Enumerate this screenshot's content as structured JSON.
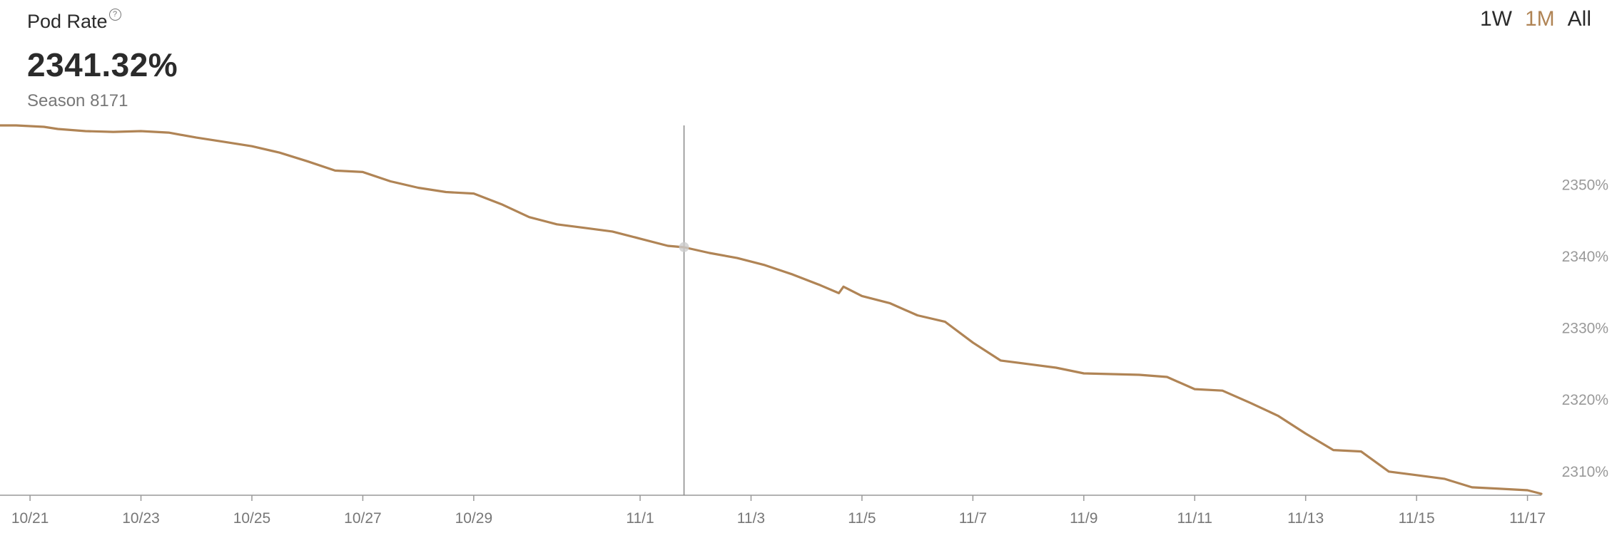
{
  "header": {
    "title": "Pod Rate",
    "help_icon": "question-circle-icon",
    "value": "2341.32%",
    "subtitle": "Season 8171"
  },
  "range_tabs": [
    {
      "label": "1W",
      "active": false
    },
    {
      "label": "1M",
      "active": true
    },
    {
      "label": "All",
      "active": false
    }
  ],
  "colors": {
    "line": "#b08455",
    "crosshair": "#888888",
    "axis": "#999999"
  },
  "chart_data": {
    "type": "line",
    "title": "",
    "xlabel": "",
    "ylabel": "",
    "x_ticks": [
      "10/21",
      "10/23",
      "10/25",
      "10/27",
      "10/29",
      "11/1",
      "11/3",
      "11/5",
      "11/7",
      "11/9",
      "11/11",
      "11/13",
      "11/15",
      "11/17"
    ],
    "y_ticks": [
      "2310%",
      "2320%",
      "2330%",
      "2340%",
      "2350%"
    ],
    "ylim": [
      2306.7,
      2358.3
    ],
    "xlim": [
      "10/20 11:00",
      "11/17 06:00"
    ],
    "grid": false,
    "hover": {
      "x": "11/1 19:00",
      "y": 2341.32
    },
    "series": [
      {
        "x": [
          "10/20 11:00",
          "10/20 18:00",
          "10/21 00:00",
          "10/21 06:00",
          "10/21 12:00",
          "10/22 00:00",
          "10/22 12:00",
          "10/23 00:00",
          "10/23 12:00",
          "10/24 00:00",
          "10/24 12:00",
          "10/25 00:00",
          "10/25 12:00",
          "10/26 00:00",
          "10/26 12:00",
          "10/27 00:00",
          "10/27 12:00",
          "10/28 00:00",
          "10/28 12:00",
          "10/29 00:00",
          "10/29 12:00",
          "10/30 00:00",
          "10/30 12:00",
          "10/31 00:00",
          "10/31 12:00",
          "11/1 00:00",
          "11/1 12:00",
          "11/1 19:00",
          "11/2 06:00",
          "11/2 18:00",
          "11/3 06:00",
          "11/3 18:00",
          "11/4 06:00",
          "11/4 14:00",
          "11/4 16:00",
          "11/5 00:00",
          "11/5 12:00",
          "11/6 00:00",
          "11/6 12:00",
          "11/7 00:00",
          "11/7 12:00",
          "11/8 00:00",
          "11/8 12:00",
          "11/9 00:00",
          "11/9 12:00",
          "11/10 00:00",
          "11/10 12:00",
          "11/11 00:00",
          "11/11 12:00",
          "11/12 00:00",
          "11/12 12:00",
          "11/13 00:00",
          "11/13 12:00",
          "11/14 00:00",
          "11/14 12:00",
          "11/15 00:00",
          "11/15 12:00",
          "11/16 00:00",
          "11/16 12:00",
          "11/17 00:00",
          "11/17 06:00"
        ],
        "y": [
          2358.3,
          2358.3,
          2358.2,
          2358.1,
          2357.8,
          2357.5,
          2357.4,
          2357.5,
          2357.3,
          2356.6,
          2356.0,
          2355.4,
          2354.5,
          2353.3,
          2352.0,
          2351.8,
          2350.5,
          2349.6,
          2349.0,
          2348.8,
          2347.3,
          2345.5,
          2344.5,
          2344.0,
          2343.5,
          2342.5,
          2341.5,
          2341.3,
          2340.5,
          2339.8,
          2338.8,
          2337.5,
          2336.0,
          2334.9,
          2335.8,
          2334.5,
          2333.5,
          2331.8,
          2330.9,
          2328.0,
          2325.5,
          2325.0,
          2324.5,
          2323.7,
          2323.6,
          2323.5,
          2323.2,
          2321.5,
          2321.3,
          2319.6,
          2317.8,
          2315.3,
          2313.0,
          2312.8,
          2310.0,
          2309.5,
          2309.0,
          2307.8,
          2307.6,
          2307.4,
          2306.9
        ]
      }
    ]
  }
}
